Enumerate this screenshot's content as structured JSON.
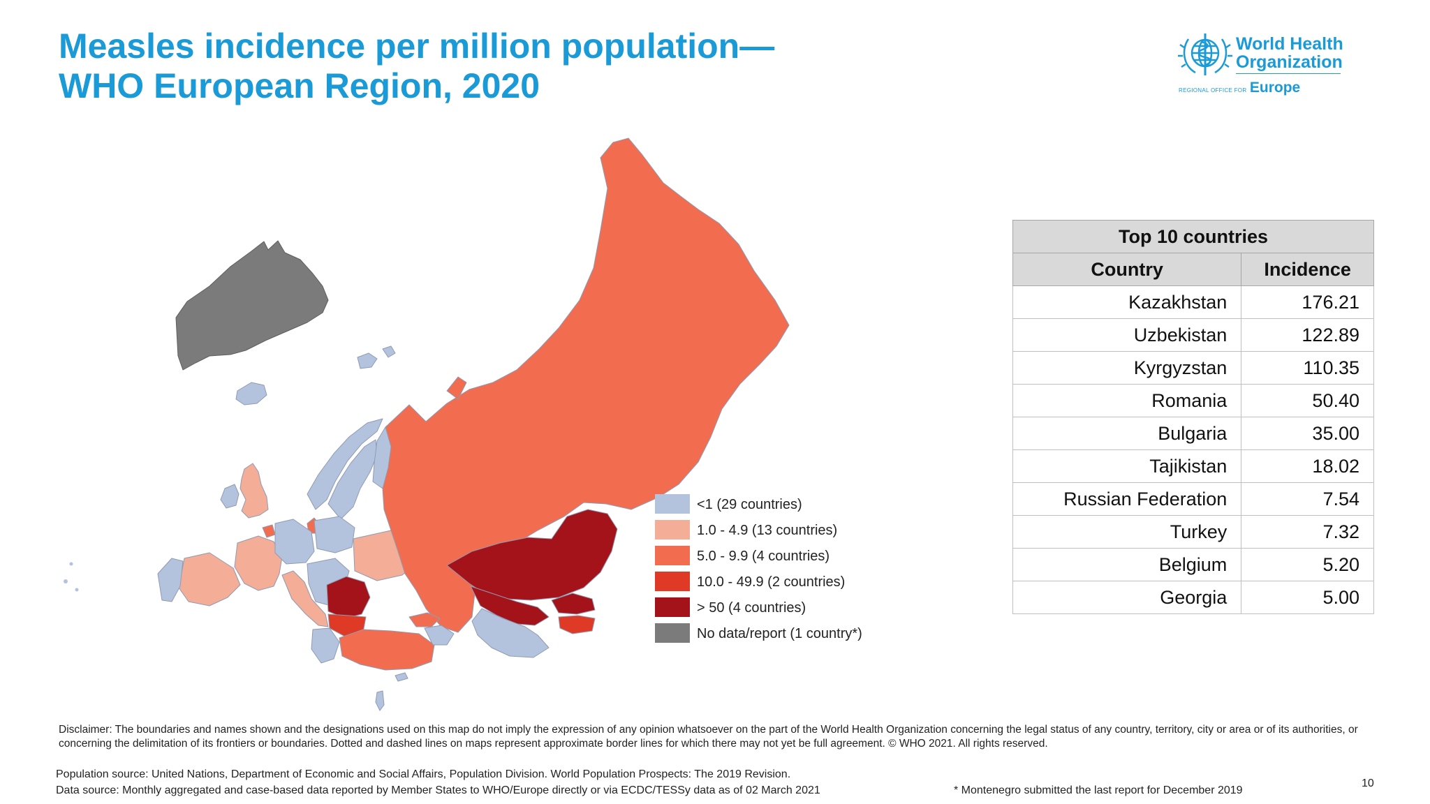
{
  "title": {
    "line1": "Measles incidence per million population—",
    "line2": "WHO European Region, 2020"
  },
  "logo": {
    "org_line1": "World Health",
    "org_line2": "Organization",
    "region_small": "REGIONAL OFFICE FOR",
    "region_name": "Europe",
    "icon": "who-emblem-icon"
  },
  "colors": {
    "lt1": "#b4c3dd",
    "c1_4": "#f4ad96",
    "c5_9": "#f26d4f",
    "c10_49": "#de3a26",
    "c50": "#a5131a",
    "nodata": "#7b7b7b",
    "accent": "#1a9ad6"
  },
  "legend": {
    "items": [
      {
        "label": "<1 (29 countries)",
        "color": "#b4c3dd"
      },
      {
        "label": "1.0 - 4.9 (13 countries)",
        "color": "#f4ad96"
      },
      {
        "label": "5.0 - 9.9 (4 countries)",
        "color": "#f26d4f"
      },
      {
        "label": "10.0 - 49.9 (2 countries)",
        "color": "#de3a26"
      },
      {
        "label": "> 50 (4 countries)",
        "color": "#a5131a"
      },
      {
        "label": "No data/report",
        "color": "#7b7b7b"
      }
    ],
    "nodata_note": "(1 country*)"
  },
  "table": {
    "title": "Top 10 countries",
    "col_country": "Country",
    "col_incidence": "Incidence",
    "rows": [
      {
        "country": "Kazakhstan",
        "incidence": "176.21"
      },
      {
        "country": "Uzbekistan",
        "incidence": "122.89"
      },
      {
        "country": "Kyrgyzstan",
        "incidence": "110.35"
      },
      {
        "country": "Romania",
        "incidence": "50.40"
      },
      {
        "country": "Bulgaria",
        "incidence": "35.00"
      },
      {
        "country": "Tajikistan",
        "incidence": "18.02"
      },
      {
        "country": "Russian Federation",
        "incidence": "7.54"
      },
      {
        "country": "Turkey",
        "incidence": "7.32"
      },
      {
        "country": "Belgium",
        "incidence": "5.20"
      },
      {
        "country": "Georgia",
        "incidence": "5.00"
      }
    ]
  },
  "disclaimer": "Disclaimer: The boundaries and names shown and the designations used on this map do not imply the expression of any opinion whatsoever on the part of the World Health Organization concerning the legal status of any country, territory, city or area or of its authorities, or concerning the delimitation of its frontiers or boundaries. Dotted and dashed lines on maps represent approximate border lines for which there may not yet be full agreement. © WHO 2021. All rights reserved.",
  "population_source": "Population source: United Nations, Department of Economic and Social Affairs, Population Division. World Population Prospects: The 2019 Revision.",
  "data_source": "Data source: Monthly aggregated and case-based data reported by Member States to WHO/Europe directly or via ECDC/TESSy data as of 02 March 2021",
  "footnote": "* Montenegro submitted the last report for December 2019",
  "page_number": "10"
}
